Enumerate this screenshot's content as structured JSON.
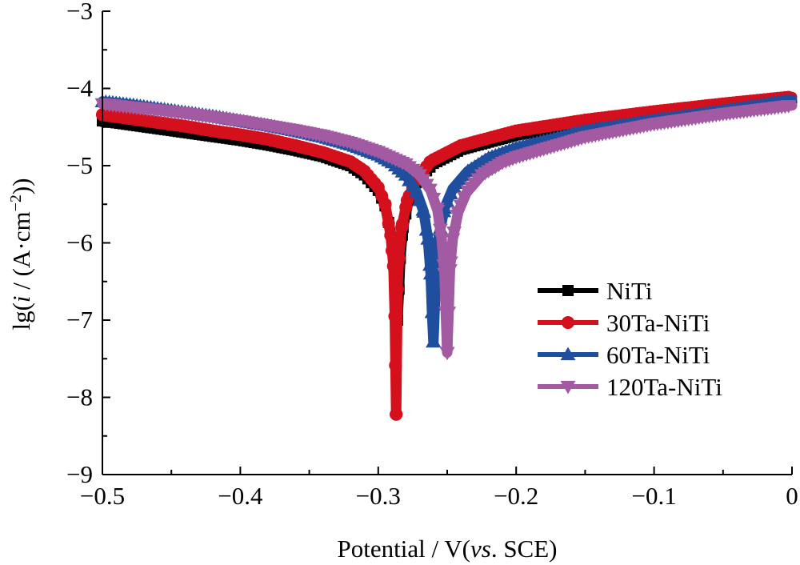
{
  "chart_data": {
    "type": "line",
    "xlabel_parts": [
      "Potential / V(",
      "vs",
      ". SCE)"
    ],
    "ylabel_parts": [
      "lg(",
      "i",
      " / (A·cm",
      "−2",
      "))"
    ],
    "xlim": [
      -0.5,
      0
    ],
    "ylim": [
      -9,
      -3
    ],
    "xticks": [
      -0.5,
      -0.4,
      -0.3,
      -0.2,
      -0.1,
      0
    ],
    "xtick_labels": [
      "−0.5",
      "−0.4",
      "−0.3",
      "−0.2",
      "−0.1",
      "0"
    ],
    "yticks": [
      -9,
      -8,
      -7,
      -6,
      -5,
      -4,
      -3
    ],
    "ytick_labels": [
      "−9",
      "−8",
      "−7",
      "−6",
      "−5",
      "−4",
      "−3"
    ],
    "grid": false,
    "legend_position": "center-right",
    "series": [
      {
        "name": "NiTi",
        "marker": "square",
        "color": "#000000",
        "ecorr": -0.286,
        "min": -7.0,
        "points": [
          [
            -0.5,
            -4.42
          ],
          [
            -0.48,
            -4.47
          ],
          [
            -0.46,
            -4.52
          ],
          [
            -0.44,
            -4.57
          ],
          [
            -0.42,
            -4.62
          ],
          [
            -0.4,
            -4.67
          ],
          [
            -0.38,
            -4.73
          ],
          [
            -0.36,
            -4.8
          ],
          [
            -0.34,
            -4.88
          ],
          [
            -0.32,
            -5.0
          ],
          [
            -0.31,
            -5.12
          ],
          [
            -0.3,
            -5.32
          ],
          [
            -0.295,
            -5.52
          ],
          [
            -0.29,
            -5.95
          ],
          [
            -0.288,
            -6.35
          ],
          [
            -0.287,
            -6.8
          ],
          [
            -0.286,
            -7.0
          ],
          [
            -0.285,
            -6.6
          ],
          [
            -0.284,
            -6.2
          ],
          [
            -0.282,
            -5.8
          ],
          [
            -0.278,
            -5.45
          ],
          [
            -0.272,
            -5.2
          ],
          [
            -0.26,
            -4.97
          ],
          [
            -0.24,
            -4.79
          ],
          [
            -0.2,
            -4.6
          ],
          [
            -0.15,
            -4.46
          ],
          [
            -0.1,
            -4.36
          ],
          [
            -0.05,
            -4.27
          ],
          [
            0.0,
            -4.18
          ]
        ]
      },
      {
        "name": "30Ta-NiTi",
        "marker": "circle",
        "color": "#d4101c",
        "ecorr": -0.287,
        "min": -8.22,
        "points": [
          [
            -0.5,
            -4.34
          ],
          [
            -0.48,
            -4.39
          ],
          [
            -0.46,
            -4.44
          ],
          [
            -0.44,
            -4.49
          ],
          [
            -0.42,
            -4.55
          ],
          [
            -0.4,
            -4.6
          ],
          [
            -0.38,
            -4.66
          ],
          [
            -0.36,
            -4.74
          ],
          [
            -0.34,
            -4.83
          ],
          [
            -0.32,
            -4.95
          ],
          [
            -0.31,
            -5.07
          ],
          [
            -0.3,
            -5.28
          ],
          [
            -0.295,
            -5.5
          ],
          [
            -0.291,
            -5.9
          ],
          [
            -0.289,
            -6.3
          ],
          [
            -0.288,
            -6.95
          ],
          [
            -0.287,
            -8.22
          ],
          [
            -0.286,
            -6.6
          ],
          [
            -0.285,
            -6.2
          ],
          [
            -0.283,
            -5.8
          ],
          [
            -0.279,
            -5.45
          ],
          [
            -0.273,
            -5.2
          ],
          [
            -0.262,
            -4.94
          ],
          [
            -0.24,
            -4.74
          ],
          [
            -0.2,
            -4.55
          ],
          [
            -0.15,
            -4.41
          ],
          [
            -0.1,
            -4.3
          ],
          [
            -0.05,
            -4.2
          ],
          [
            0.0,
            -4.11
          ]
        ]
      },
      {
        "name": "60Ta-NiTi",
        "marker": "triangle-up",
        "color": "#1f4e9e",
        "ecorr": -0.26,
        "min": -7.28,
        "points": [
          [
            -0.5,
            -4.17
          ],
          [
            -0.48,
            -4.21
          ],
          [
            -0.46,
            -4.26
          ],
          [
            -0.44,
            -4.31
          ],
          [
            -0.42,
            -4.36
          ],
          [
            -0.4,
            -4.42
          ],
          [
            -0.38,
            -4.48
          ],
          [
            -0.36,
            -4.55
          ],
          [
            -0.34,
            -4.63
          ],
          [
            -0.32,
            -4.73
          ],
          [
            -0.3,
            -4.86
          ],
          [
            -0.29,
            -4.96
          ],
          [
            -0.28,
            -5.12
          ],
          [
            -0.272,
            -5.35
          ],
          [
            -0.267,
            -5.6
          ],
          [
            -0.264,
            -5.95
          ],
          [
            -0.262,
            -6.4
          ],
          [
            -0.261,
            -6.9
          ],
          [
            -0.26,
            -7.28
          ],
          [
            -0.259,
            -6.8
          ],
          [
            -0.258,
            -6.3
          ],
          [
            -0.256,
            -5.9
          ],
          [
            -0.252,
            -5.55
          ],
          [
            -0.246,
            -5.3
          ],
          [
            -0.235,
            -5.07
          ],
          [
            -0.22,
            -4.9
          ],
          [
            -0.2,
            -4.77
          ],
          [
            -0.15,
            -4.55
          ],
          [
            -0.1,
            -4.41
          ],
          [
            -0.05,
            -4.29
          ],
          [
            0.0,
            -4.15
          ]
        ]
      },
      {
        "name": "120Ta-NiTi",
        "marker": "triangle-down",
        "color": "#a25aa2",
        "ecorr": -0.25,
        "min": -7.42,
        "points": [
          [
            -0.5,
            -4.2
          ],
          [
            -0.48,
            -4.24
          ],
          [
            -0.46,
            -4.28
          ],
          [
            -0.44,
            -4.32
          ],
          [
            -0.42,
            -4.37
          ],
          [
            -0.4,
            -4.42
          ],
          [
            -0.38,
            -4.48
          ],
          [
            -0.36,
            -4.54
          ],
          [
            -0.34,
            -4.61
          ],
          [
            -0.32,
            -4.7
          ],
          [
            -0.3,
            -4.82
          ],
          [
            -0.28,
            -4.98
          ],
          [
            -0.27,
            -5.12
          ],
          [
            -0.262,
            -5.32
          ],
          [
            -0.257,
            -5.58
          ],
          [
            -0.254,
            -5.95
          ],
          [
            -0.252,
            -6.4
          ],
          [
            -0.251,
            -6.9
          ],
          [
            -0.25,
            -7.42
          ],
          [
            -0.249,
            -6.9
          ],
          [
            -0.248,
            -6.35
          ],
          [
            -0.246,
            -5.95
          ],
          [
            -0.242,
            -5.6
          ],
          [
            -0.236,
            -5.35
          ],
          [
            -0.225,
            -5.12
          ],
          [
            -0.21,
            -4.96
          ],
          [
            -0.2,
            -4.89
          ],
          [
            -0.15,
            -4.63
          ],
          [
            -0.1,
            -4.46
          ],
          [
            -0.05,
            -4.33
          ],
          [
            0.0,
            -4.22
          ]
        ]
      }
    ]
  }
}
